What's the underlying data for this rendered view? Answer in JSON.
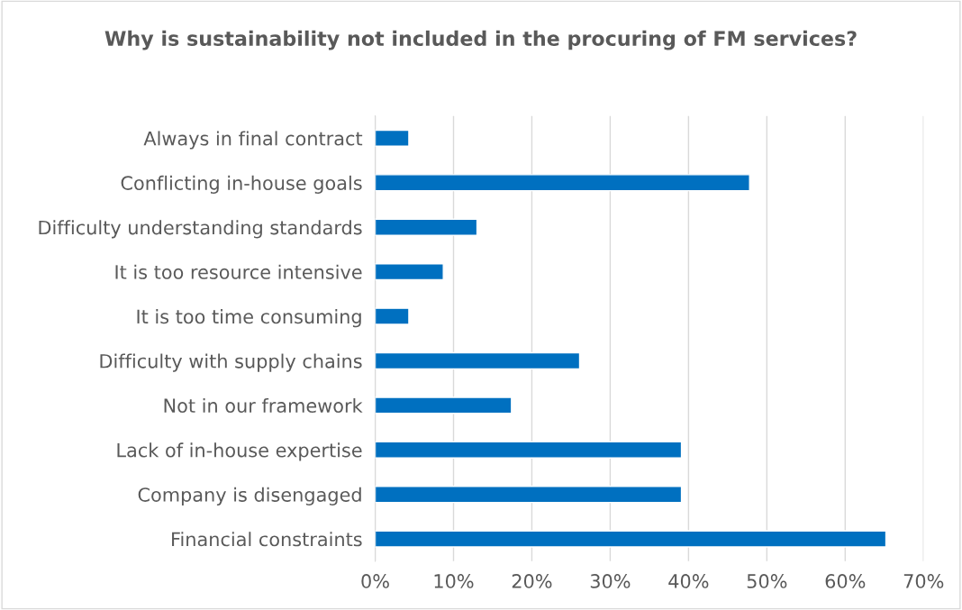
{
  "chart_data": {
    "type": "bar",
    "orientation": "horizontal",
    "title": "Why is sustainability not included in the procuring of FM services?",
    "categories": [
      "Always in final contract",
      "Conflicting in-house goals",
      "Difficulty understanding standards",
      "It is too resource intensive",
      "It is too time consuming",
      "Difficulty with supply chains",
      "Not in our framework",
      "Lack of in-house expertise",
      "Company is disengaged",
      "Financial constraints"
    ],
    "values": [
      4.3,
      47.8,
      13.0,
      8.7,
      4.3,
      26.1,
      17.4,
      39.1,
      39.1,
      65.2
    ],
    "color": "#0070c0",
    "xlim": [
      0,
      70
    ],
    "xticks": [
      {
        "value": 0,
        "label": "0%"
      },
      {
        "value": 10,
        "label": "10%"
      },
      {
        "value": 20,
        "label": "20%"
      },
      {
        "value": 30,
        "label": "30%"
      },
      {
        "value": 40,
        "label": "40%"
      },
      {
        "value": 50,
        "label": "50%"
      },
      {
        "value": 60,
        "label": "60%"
      },
      {
        "value": 70,
        "label": "70%"
      }
    ],
    "grid": "x",
    "legend": false
  }
}
